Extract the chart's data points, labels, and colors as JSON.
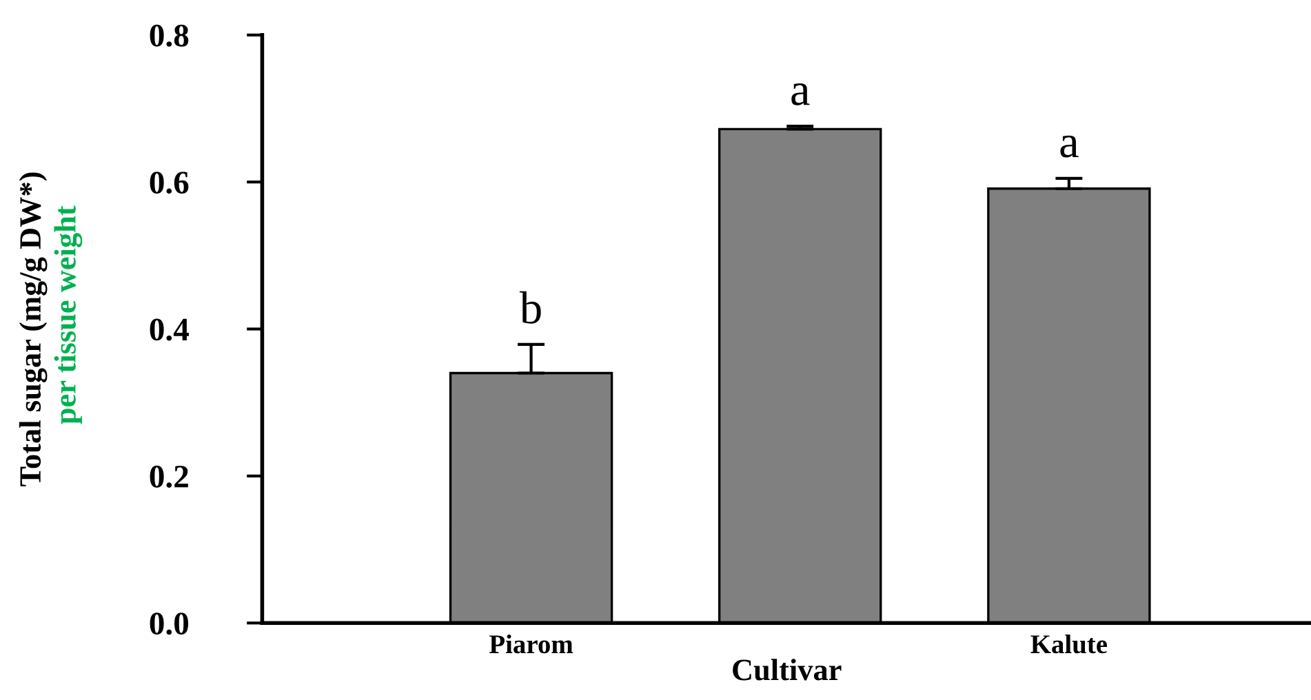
{
  "chart_data": {
    "type": "bar",
    "xlabel": "Cultivar",
    "ylabel": "Total sugar (mg/g DW*)",
    "annotations": [
      "per tissue weight"
    ],
    "categories": [
      "Piarom",
      null,
      "Kalute"
    ],
    "values": [
      0.34,
      0.672,
      0.591
    ],
    "errors": [
      [
        0.34,
        0.379
      ],
      [
        0.672,
        0.676
      ],
      [
        0.591,
        0.605
      ]
    ],
    "value_labels": [
      "b",
      "a",
      "a"
    ],
    "color": "#808080",
    "ylim": [
      0,
      0.8
    ],
    "yticks": [
      {
        "value": 0,
        "label": "0.0"
      },
      {
        "value": 0.2,
        "label": "0.2"
      },
      {
        "value": 0.4,
        "label": "0.4"
      },
      {
        "value": 0.6,
        "label": "0.6"
      },
      {
        "value": 0.8,
        "label": "0.8"
      }
    ],
    "grid": false,
    "legend": false
  }
}
